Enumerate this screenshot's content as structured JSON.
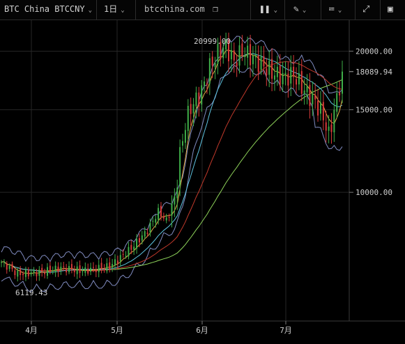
{
  "toolbar": {
    "symbol": "BTC China BTCCNY",
    "interval": "1日",
    "site": "btcchina.com",
    "icons": [
      "chevron-down",
      "copy",
      "bar-style",
      "pencil",
      "indicator",
      "fullscreen",
      "panel-toggle"
    ]
  },
  "chart_data": {
    "type": "candlestick",
    "x_tick_labels": [
      "4月",
      "5月",
      "6月",
      "7月"
    ],
    "y_tick_labels": [
      "20000.00",
      "15000.00",
      "10000.00"
    ],
    "y_ticks": [
      20000,
      15000,
      10000
    ],
    "ylim": [
      5500,
      22500
    ],
    "y_scale": "log",
    "grid": true,
    "high_label": "20999.00",
    "high_value": 20999,
    "low_label": "6119.43",
    "low_value": 6119.43,
    "last_price_label": "18089.94",
    "last_price": 18089.94,
    "colors": {
      "up": "#3fae49",
      "down": "#d93a3a",
      "ma_fast": "#e8b04a",
      "ma_mid": "#5ec3e0",
      "ma_slow": "#c0392b",
      "ma_long": "#8fd45a",
      "band": "#8f9bd6"
    },
    "anchors": [
      {
        "x": 0,
        "y": 7100
      },
      {
        "x": 6,
        "y": 6700
      },
      {
        "x": 14,
        "y": 6750
      },
      {
        "x": 22,
        "y": 6900
      },
      {
        "x": 30,
        "y": 6800
      },
      {
        "x": 40,
        "y": 6950
      },
      {
        "x": 48,
        "y": 7600
      },
      {
        "x": 54,
        "y": 8300
      },
      {
        "x": 58,
        "y": 9100
      },
      {
        "x": 61,
        "y": 8700
      },
      {
        "x": 64,
        "y": 9600
      },
      {
        "x": 66,
        "y": 12000
      },
      {
        "x": 68,
        "y": 14000
      },
      {
        "x": 70,
        "y": 15200
      },
      {
        "x": 73,
        "y": 16000
      },
      {
        "x": 75,
        "y": 17000
      },
      {
        "x": 77,
        "y": 18500
      },
      {
        "x": 80,
        "y": 19800
      },
      {
        "x": 83,
        "y": 20500
      },
      {
        "x": 86,
        "y": 19000
      },
      {
        "x": 89,
        "y": 20000
      },
      {
        "x": 92,
        "y": 19500
      },
      {
        "x": 96,
        "y": 18800
      },
      {
        "x": 100,
        "y": 18000
      },
      {
        "x": 104,
        "y": 17600
      },
      {
        "x": 108,
        "y": 17800
      },
      {
        "x": 112,
        "y": 16500
      },
      {
        "x": 116,
        "y": 15600
      },
      {
        "x": 119,
        "y": 14500
      },
      {
        "x": 121,
        "y": 13200
      },
      {
        "x": 124,
        "y": 15800
      },
      {
        "x": 126,
        "y": 18089.94
      }
    ],
    "candle_count": 127
  }
}
